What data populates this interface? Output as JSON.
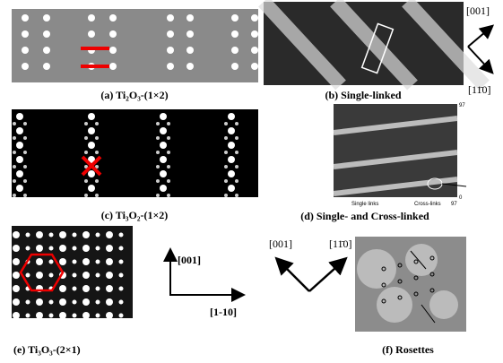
{
  "panels": [
    {
      "caption": "(a) Ti₂O₃-(1×2)"
    },
    {
      "caption": "(b) Single-linked",
      "directions": [
        "[001]",
        "[11̄0]"
      ]
    },
    {
      "caption": "(c) Ti₃O₂-(1×2)"
    },
    {
      "caption": "(d) Single- and Cross-linked",
      "annotations": [
        "Single links",
        "Cross-links",
        "97",
        "0",
        "97"
      ]
    },
    {
      "caption": "(e) Ti₃O₃-(2×1)",
      "directions": [
        "[001]",
        "[1-10]"
      ]
    },
    {
      "caption": "(f) Rosettes",
      "directions": [
        "[001]",
        "[11̄0]"
      ]
    }
  ]
}
